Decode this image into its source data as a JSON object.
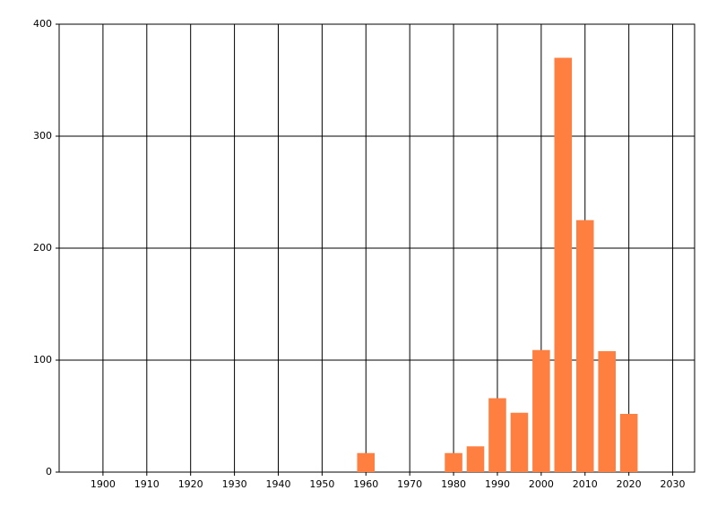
{
  "chart_data": {
    "type": "bar",
    "x": [
      1960,
      1980,
      1985,
      1990,
      1995,
      2000,
      2005,
      2010,
      2015,
      2020
    ],
    "values": [
      17,
      17,
      23,
      66,
      53,
      109,
      370,
      225,
      108,
      52
    ],
    "color": "#ff7f40",
    "xlim": [
      1890,
      2035
    ],
    "xticks": [
      1900,
      1910,
      1920,
      1930,
      1940,
      1950,
      1960,
      1970,
      1980,
      1990,
      2000,
      2010,
      2020,
      2030
    ],
    "ylim": [
      0,
      400
    ],
    "yticks": [
      0,
      100,
      200,
      300,
      400
    ],
    "grid": true
  }
}
